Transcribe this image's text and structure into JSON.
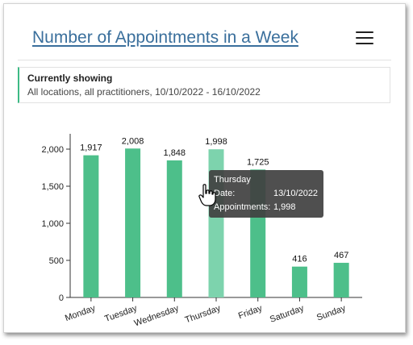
{
  "header": {
    "title": "Number of Appointments in a Week",
    "menu_icon": "hamburger-menu-icon"
  },
  "filter": {
    "heading": "Currently showing",
    "description": "All locations, all practitioners, 10/10/2022 - 16/10/2022"
  },
  "colors": {
    "bar": "#4dbf8a",
    "bar_hover": "#7dd3ad",
    "accent": "#3dba85",
    "tooltip_bg": "#404040"
  },
  "chart_data": {
    "type": "bar",
    "categories": [
      "Monday",
      "Tuesday",
      "Wednesday",
      "Thursday",
      "Friday",
      "Saturday",
      "Sunday"
    ],
    "values": [
      1917,
      2008,
      1848,
      1998,
      1725,
      416,
      467
    ],
    "value_labels": [
      "1,917",
      "2,008",
      "1,848",
      "1,998",
      "1,725",
      "416",
      "467"
    ],
    "y_ticks": [
      0,
      500,
      1000,
      1500,
      2000
    ],
    "y_tick_labels": [
      "0",
      "500",
      "1,000",
      "1,500",
      "2,000"
    ],
    "ylim": [
      0,
      2200
    ],
    "highlighted_index": 3,
    "grid": false
  },
  "tooltip": {
    "title": "Thursday",
    "rows": [
      {
        "label": "Date:",
        "value": "13/10/2022"
      },
      {
        "label": "Appointments:",
        "value": "1,998"
      }
    ]
  }
}
